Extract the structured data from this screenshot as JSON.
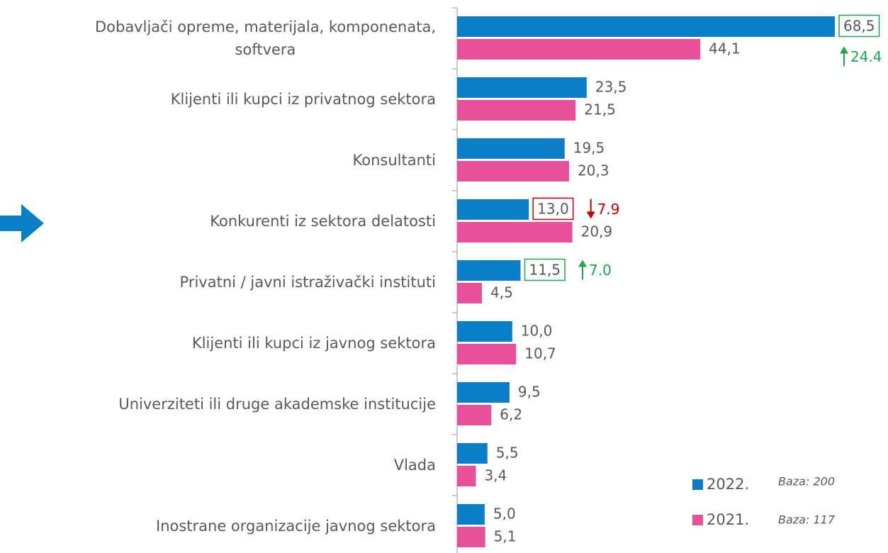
{
  "chart_data": {
    "type": "barh",
    "categories": [
      "Dobavljači opreme, materijala, komponenata,\nsoftvera",
      "Klijenti ili kupci iz privatnog sektora",
      "Konsultanti",
      "Konkurenti iz sektora delatosti",
      "Privatni / javni istraživački instituti",
      "Klijenti ili kupci iz javnog sektora",
      "Univerziteti ili druge akademske institucije",
      "Vlada",
      "Inostrane organizacije javnog sektora"
    ],
    "series": [
      {
        "name": "2022.",
        "note": "Baza: 200",
        "color": "#0a7fc8",
        "values": [
          68.5,
          23.5,
          19.5,
          13.0,
          11.5,
          10.0,
          9.5,
          5.5,
          5.0
        ],
        "value_labels": [
          "68,5",
          "23,5",
          "19,5",
          "13,0",
          "11,5",
          "10,0",
          "9,5",
          "5,5",
          "5,0"
        ]
      },
      {
        "name": "2021.",
        "note": "Baza: 117",
        "color": "#e8509a",
        "values": [
          44.1,
          21.5,
          20.3,
          20.9,
          4.5,
          10.7,
          6.2,
          3.4,
          5.1
        ],
        "value_labels": [
          "44,1",
          "21,5",
          "20,3",
          "20,9",
          "4,5",
          "10,7",
          "6,2",
          "3,4",
          "5,1"
        ]
      }
    ],
    "annotations": [
      {
        "category": 0,
        "text": "24.4",
        "direction": "up",
        "color": "#1aa84a"
      },
      {
        "category": 3,
        "text": "7.9",
        "direction": "down",
        "color": "#c00000"
      },
      {
        "category": 4,
        "text": "7.0",
        "direction": "up",
        "color": "#1aa84a"
      }
    ]
  }
}
